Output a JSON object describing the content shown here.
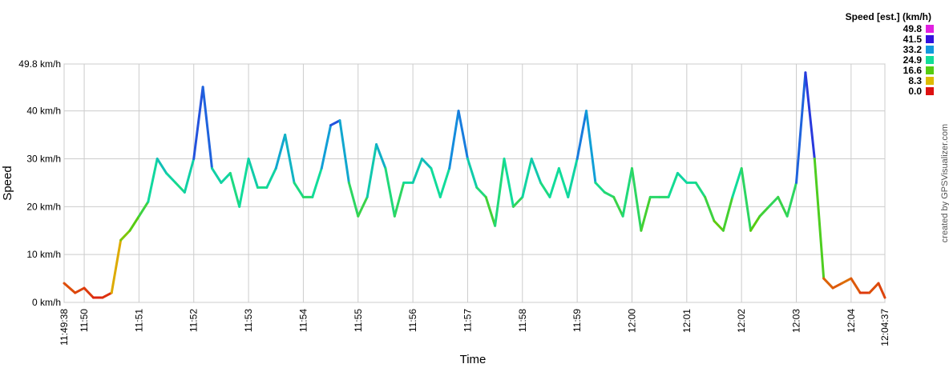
{
  "chart_data": {
    "type": "line",
    "x_label": "Time",
    "y_label": "Speed",
    "credit": "created by GPSVisualizer.com",
    "x": [
      "11:49:38",
      "11:49:50",
      "11:50:00",
      "11:50:10",
      "11:50:20",
      "11:50:30",
      "11:50:40",
      "11:50:50",
      "11:51:00",
      "11:51:10",
      "11:51:20",
      "11:51:30",
      "11:51:40",
      "11:51:50",
      "11:52:00",
      "11:52:10",
      "11:52:20",
      "11:52:30",
      "11:52:40",
      "11:52:50",
      "11:53:00",
      "11:53:10",
      "11:53:20",
      "11:53:30",
      "11:53:40",
      "11:53:50",
      "11:54:00",
      "11:54:10",
      "11:54:20",
      "11:54:30",
      "11:54:40",
      "11:54:50",
      "11:55:00",
      "11:55:10",
      "11:55:20",
      "11:55:30",
      "11:55:40",
      "11:55:50",
      "11:56:00",
      "11:56:10",
      "11:56:20",
      "11:56:30",
      "11:56:40",
      "11:56:50",
      "11:57:00",
      "11:57:10",
      "11:57:20",
      "11:57:30",
      "11:57:40",
      "11:57:50",
      "11:58:00",
      "11:58:10",
      "11:58:20",
      "11:58:30",
      "11:58:40",
      "11:58:50",
      "11:59:00",
      "11:59:10",
      "11:59:20",
      "11:59:30",
      "11:59:40",
      "11:59:50",
      "12:00:00",
      "12:00:10",
      "12:00:20",
      "12:00:30",
      "12:00:40",
      "12:00:50",
      "12:01:00",
      "12:01:10",
      "12:01:20",
      "12:01:30",
      "12:01:40",
      "12:01:50",
      "12:02:00",
      "12:02:10",
      "12:02:20",
      "12:02:30",
      "12:02:40",
      "12:02:50",
      "12:03:00",
      "12:03:10",
      "12:03:20",
      "12:03:30",
      "12:03:40",
      "12:03:50",
      "12:04:00",
      "12:04:10",
      "12:04:20",
      "12:04:30",
      "12:04:37"
    ],
    "series": [
      {
        "name": "Speed",
        "values": [
          4,
          2,
          3,
          1,
          1,
          2,
          13,
          15,
          18,
          21,
          30,
          27,
          25,
          23,
          30,
          45,
          28,
          25,
          27,
          20,
          30,
          24,
          24,
          28,
          35,
          25,
          22,
          22,
          28,
          37,
          38,
          25,
          18,
          22,
          33,
          28,
          18,
          25,
          25,
          30,
          28,
          22,
          28,
          40,
          30,
          24,
          22,
          16,
          30,
          20,
          22,
          30,
          25,
          22,
          28,
          22,
          30,
          40,
          25,
          23,
          22,
          18,
          28,
          15,
          22,
          22,
          22,
          27,
          25,
          25,
          22,
          17,
          15,
          22,
          28,
          15,
          18,
          20,
          22,
          18,
          25,
          48,
          30,
          5,
          3,
          4,
          5,
          2,
          2,
          4,
          1
        ]
      }
    ],
    "xlim": [
      "11:49:38",
      "12:04:37"
    ],
    "xticks": [
      "11:49:38",
      {
        "value": "11:50:00",
        "label": "11:50"
      },
      {
        "value": "11:51:00",
        "label": "11:51"
      },
      {
        "value": "11:52:00",
        "label": "11:52"
      },
      {
        "value": "11:53:00",
        "label": "11:53"
      },
      {
        "value": "11:54:00",
        "label": "11:54"
      },
      {
        "value": "11:55:00",
        "label": "11:55"
      },
      {
        "value": "11:56:00",
        "label": "11:56"
      },
      {
        "value": "11:57:00",
        "label": "11:57"
      },
      {
        "value": "11:58:00",
        "label": "11:58"
      },
      {
        "value": "11:59:00",
        "label": "11:59"
      },
      {
        "value": "12:00:00",
        "label": "12:00"
      },
      {
        "value": "12:01:00",
        "label": "12:01"
      },
      {
        "value": "12:02:00",
        "label": "12:02"
      },
      {
        "value": "12:03:00",
        "label": "12:03"
      },
      {
        "value": "12:04:00",
        "label": "12:04"
      },
      "12:04:37"
    ],
    "ylim": [
      0,
      49.8
    ],
    "yticks": [
      {
        "value": 0,
        "label": "0 km/h"
      },
      {
        "value": 10,
        "label": "10 km/h"
      },
      {
        "value": 20,
        "label": "20 km/h"
      },
      {
        "value": 30,
        "label": "30 km/h"
      },
      {
        "value": 40,
        "label": "40 km/h"
      },
      {
        "value": 49.8,
        "label": "49.8 km/h"
      }
    ],
    "grid": true,
    "legend": {
      "title": "Speed [est.] (km/h)",
      "values": [
        49.8,
        41.5,
        33.2,
        24.9,
        16.6,
        8.3,
        {
          "value": 0,
          "label": "0.0"
        }
      ],
      "colors": [
        "#e020e0",
        "#3311dd",
        "#1199dd",
        "#11dd99",
        "#55cc11",
        "#ddbb00",
        "#dd1111"
      ]
    }
  }
}
